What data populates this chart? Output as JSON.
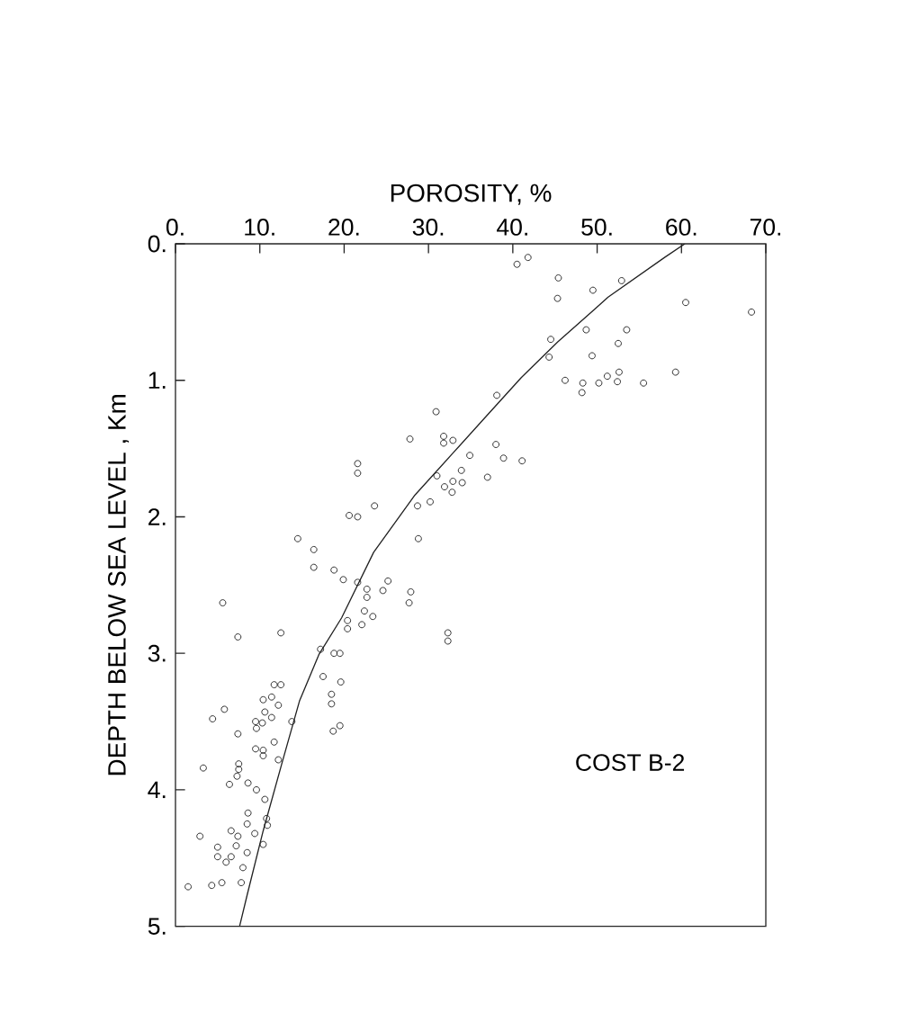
{
  "chart_data": {
    "type": "scatter",
    "xlabel": "POROSITY, %",
    "ylabel": "DEPTH BELOW SEA LEVEL , Km",
    "annotations": [
      "COST B-2"
    ],
    "xlim": [
      0,
      70
    ],
    "ylim": [
      5,
      0
    ],
    "xticks": [
      {
        "value": 0,
        "label": "0."
      },
      {
        "value": 10,
        "label": "10."
      },
      {
        "value": 20,
        "label": "20."
      },
      {
        "value": 30,
        "label": "30."
      },
      {
        "value": 40,
        "label": "40."
      },
      {
        "value": 50,
        "label": "50."
      },
      {
        "value": 60,
        "label": "60."
      },
      {
        "value": 70,
        "label": "70."
      }
    ],
    "yticks": [
      {
        "value": 0,
        "label": "0."
      },
      {
        "value": 1,
        "label": "1."
      },
      {
        "value": 2,
        "label": "2."
      },
      {
        "value": 3,
        "label": "3."
      },
      {
        "value": 4,
        "label": "4."
      },
      {
        "value": 5,
        "label": "5."
      }
    ],
    "series": [
      {
        "color": "#222222",
        "marker": "circle",
        "x": [
          40.5,
          41.8,
          45.4,
          45.3,
          49.5,
          52.9,
          60.5,
          68.3,
          44.5,
          48.7,
          53.5,
          52.5,
          44.3,
          49.4,
          46.2,
          48.3,
          48.2,
          50.2,
          51.2,
          52.6,
          52.4,
          55.5,
          59.3,
          38.1,
          30.9,
          27.8,
          31.8,
          31.8,
          32.9,
          38.0,
          34.9,
          38.9,
          41.1,
          33.9,
          31.0,
          37.0,
          32.9,
          34.0,
          31.9,
          32.8,
          30.2,
          28.7,
          28.8,
          21.6,
          21.6,
          23.6,
          20.6,
          21.6,
          14.5,
          16.4,
          16.4,
          18.8,
          19.9,
          21.6,
          22.7,
          22.7,
          24.6,
          25.2,
          27.9,
          27.7,
          22.4,
          23.4,
          22.1,
          20.4,
          20.4,
          5.6,
          7.4,
          12.5,
          32.3,
          32.3,
          17.2,
          18.8,
          19.5,
          17.5,
          19.6,
          18.5,
          18.5,
          19.5,
          18.7,
          13.8,
          11.7,
          12.5,
          11.4,
          10.4,
          12.2,
          10.6,
          11.4,
          9.5,
          9.6,
          10.3,
          5.8,
          4.4,
          7.4,
          9.5,
          10.4,
          10.4,
          11.7,
          12.2,
          3.3,
          7.5,
          7.5,
          7.3,
          6.4,
          8.6,
          9.6,
          10.6,
          8.6,
          8.5,
          10.8,
          10.9,
          9.4,
          6.6,
          7.4,
          10.4,
          2.9,
          5.0,
          7.2,
          8.5,
          6.6,
          6.0,
          5.0,
          8.0,
          7.8,
          5.5,
          4.3,
          1.5
        ],
        "values": [
          0.15,
          0.1,
          0.25,
          0.4,
          0.34,
          0.27,
          0.43,
          0.5,
          0.7,
          0.63,
          0.63,
          0.73,
          0.83,
          0.82,
          1.0,
          1.02,
          1.09,
          1.02,
          0.97,
          0.94,
          1.01,
          1.02,
          0.94,
          1.11,
          1.23,
          1.43,
          1.41,
          1.46,
          1.44,
          1.47,
          1.55,
          1.57,
          1.59,
          1.66,
          1.7,
          1.71,
          1.74,
          1.75,
          1.78,
          1.82,
          1.89,
          1.92,
          2.16,
          1.61,
          1.68,
          1.92,
          1.99,
          2.0,
          2.16,
          2.24,
          2.37,
          2.39,
          2.46,
          2.48,
          2.53,
          2.59,
          2.54,
          2.47,
          2.55,
          2.63,
          2.69,
          2.73,
          2.79,
          2.76,
          2.82,
          2.63,
          2.88,
          2.85,
          2.85,
          2.91,
          2.97,
          3.0,
          3.0,
          3.17,
          3.21,
          3.3,
          3.37,
          3.53,
          3.57,
          3.5,
          3.23,
          3.23,
          3.32,
          3.34,
          3.38,
          3.43,
          3.47,
          3.5,
          3.55,
          3.51,
          3.41,
          3.48,
          3.59,
          3.7,
          3.71,
          3.75,
          3.65,
          3.78,
          3.84,
          3.81,
          3.85,
          3.9,
          3.96,
          3.95,
          4.0,
          4.07,
          4.17,
          4.25,
          4.21,
          4.26,
          4.32,
          4.3,
          4.34,
          4.4,
          4.34,
          4.42,
          4.41,
          4.46,
          4.49,
          4.53,
          4.49,
          4.57,
          4.68,
          4.68,
          4.7,
          4.71
        ]
      },
      {
        "type": "line",
        "color": "#222222",
        "marker": "none",
        "line_style": "solid",
        "x": [
          60.4,
          58.0,
          51.3,
          49.7,
          45.3,
          41.0,
          36.6,
          32.8,
          28.4,
          23.5,
          19.7,
          17.0,
          14.7,
          12.6,
          10.4,
          8.5,
          7.6
        ],
        "values": [
          0,
          0.1,
          0.39,
          0.48,
          0.72,
          0.98,
          1.28,
          1.54,
          1.84,
          2.26,
          2.74,
          3.01,
          3.35,
          3.81,
          4.3,
          4.77,
          5.0
        ]
      }
    ]
  }
}
